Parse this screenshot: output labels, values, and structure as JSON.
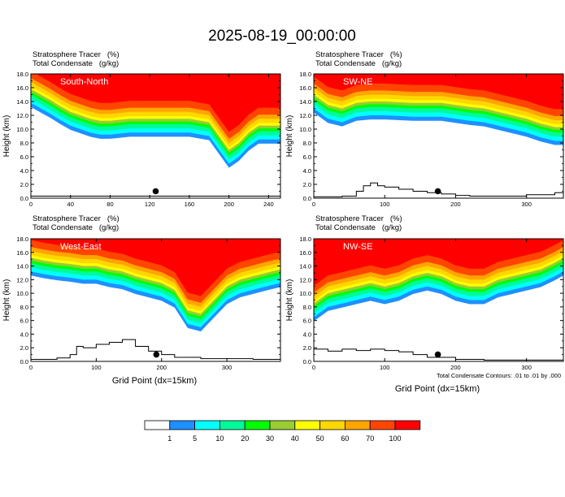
{
  "title": "2025-08-19_00:00:00",
  "xlabel": "Grid Point (dx=15km)",
  "ylabel": "Height (km)",
  "contour_note": "Total Condensate Contours: .01 to .01 by .000",
  "colorbar": {
    "levels": [
      "1",
      "5",
      "10",
      "20",
      "30",
      "40",
      "50",
      "60",
      "70",
      "100"
    ],
    "colors": [
      "#ffffff",
      "#1e90ff",
      "#00ffff",
      "#00fa9a",
      "#00ff00",
      "#9acd32",
      "#ffff00",
      "#ffd700",
      "#ffa500",
      "#ff4500",
      "#ff0000"
    ]
  },
  "chart_data": [
    {
      "type": "area",
      "panel_label": "South-North",
      "fields": [
        "Stratosphere Tracer   (%)",
        "Total Condensate   (g/kg)"
      ],
      "xlim": [
        0,
        252
      ],
      "xticks": [
        "0",
        "40",
        "80",
        "120",
        "160",
        "200",
        "240"
      ],
      "ylim": [
        0,
        18
      ],
      "yticks": [
        "0.0",
        "2.0",
        "4.0",
        "6.0",
        "8.0",
        "10.0",
        "12.0",
        "14.0",
        "16.0",
        "18.0"
      ],
      "tracer_base_height_km": {
        "x": [
          0,
          10,
          20,
          30,
          40,
          50,
          60,
          70,
          80,
          100,
          120,
          140,
          160,
          180,
          190,
          200,
          210,
          220,
          230,
          240,
          252
        ],
        "y": [
          15.8,
          15.0,
          14.2,
          13.3,
          12.5,
          12.0,
          11.5,
          11.2,
          11.2,
          11.5,
          11.5,
          11.5,
          11.5,
          11.0,
          9.0,
          7.0,
          8.0,
          9.5,
          10.5,
          10.5,
          10.5
        ]
      },
      "terrain_height_km": {
        "x": [
          0,
          40,
          80,
          120,
          160,
          200,
          252
        ],
        "y": [
          0.3,
          0.3,
          0.3,
          0.3,
          0.3,
          0.3,
          0.3
        ]
      },
      "marker": {
        "x": 126,
        "y": 1.0
      }
    },
    {
      "type": "area",
      "panel_label": "SW-NE",
      "fields": [
        "Stratosphere Tracer   (%)",
        "Total Condensate   (g/kg)"
      ],
      "xlim": [
        0,
        352
      ],
      "xticks": [
        "0",
        "100",
        "200",
        "300"
      ],
      "ylim": [
        0,
        18
      ],
      "yticks": [
        "0.0",
        "2.0",
        "4.0",
        "6.0",
        "8.0",
        "10.0",
        "12.0",
        "14.0",
        "16.0",
        "18.0"
      ],
      "tracer_base_height_km": {
        "x": [
          0,
          20,
          40,
          60,
          80,
          100,
          140,
          180,
          220,
          240,
          260,
          280,
          300,
          320,
          340,
          352
        ],
        "y": [
          15.0,
          13.5,
          13.0,
          13.8,
          14.0,
          14.0,
          13.8,
          13.8,
          13.2,
          13.0,
          12.5,
          12.0,
          11.5,
          10.8,
          10.3,
          10.3
        ]
      },
      "terrain_height_km": {
        "x": [
          0,
          40,
          60,
          70,
          80,
          90,
          100,
          120,
          140,
          160,
          180,
          200,
          220,
          260,
          300,
          340,
          352
        ],
        "y": [
          0.2,
          0.3,
          1.0,
          1.8,
          2.2,
          1.8,
          1.6,
          1.3,
          1.0,
          0.8,
          0.6,
          0.4,
          0.3,
          0.3,
          0.5,
          0.8,
          1.0
        ]
      },
      "marker": {
        "x": 175,
        "y": 1.0
      }
    },
    {
      "type": "area",
      "panel_label": "West-East",
      "fields": [
        "Stratosphere Tracer   (%)",
        "Total Condensate   (g/kg)"
      ],
      "xlim": [
        0,
        382
      ],
      "xticks": [
        "0",
        "100",
        "200",
        "300"
      ],
      "ylim": [
        0,
        18
      ],
      "yticks": [
        "0.0",
        "2.0",
        "4.0",
        "6.0",
        "8.0",
        "10.0",
        "12.0",
        "14.0",
        "16.0",
        "18.0"
      ],
      "tracer_base_height_km": {
        "x": [
          0,
          20,
          40,
          60,
          80,
          100,
          120,
          140,
          160,
          180,
          200,
          220,
          240,
          260,
          280,
          300,
          320,
          340,
          360,
          382
        ],
        "y": [
          15.2,
          14.8,
          14.5,
          14.3,
          14.0,
          14.0,
          13.5,
          13.2,
          12.5,
          12.0,
          11.5,
          10.5,
          7.5,
          7.0,
          9.0,
          11.0,
          12.0,
          12.5,
          13.0,
          13.5
        ]
      },
      "terrain_height_km": {
        "x": [
          0,
          40,
          60,
          70,
          80,
          100,
          120,
          140,
          160,
          180,
          200,
          220,
          260,
          300,
          340,
          382
        ],
        "y": [
          0.3,
          0.5,
          1.0,
          2.2,
          2.0,
          2.5,
          2.8,
          3.2,
          2.2,
          1.5,
          1.0,
          0.6,
          0.4,
          0.4,
          0.3,
          0.3
        ]
      },
      "marker": {
        "x": 192,
        "y": 1.0
      }
    },
    {
      "type": "area",
      "panel_label": "NW-SE",
      "fields": [
        "Stratosphere Tracer   (%)",
        "Total Condensate   (g/kg)"
      ],
      "xlim": [
        0,
        352
      ],
      "xticks": [
        "0",
        "100",
        "200",
        "300"
      ],
      "ylim": [
        0,
        18
      ],
      "yticks": [
        "0.0",
        "2.0",
        "4.0",
        "6.0",
        "8.0",
        "10.0",
        "12.0",
        "14.0",
        "16.0",
        "18.0"
      ],
      "tracer_base_height_km": {
        "x": [
          0,
          20,
          40,
          60,
          80,
          100,
          120,
          140,
          160,
          180,
          200,
          220,
          240,
          260,
          280,
          300,
          320,
          340,
          352
        ],
        "y": [
          8.5,
          10.0,
          10.5,
          11.0,
          11.5,
          11.0,
          11.5,
          12.5,
          13.0,
          12.5,
          11.5,
          11.0,
          11.0,
          12.0,
          12.5,
          13.0,
          13.5,
          14.5,
          15.2
        ]
      },
      "terrain_height_km": {
        "x": [
          0,
          20,
          40,
          60,
          80,
          100,
          120,
          140,
          160,
          200,
          240,
          280,
          320,
          352
        ],
        "y": [
          1.8,
          1.5,
          1.8,
          1.6,
          1.8,
          1.6,
          1.4,
          1.0,
          0.6,
          0.3,
          0.2,
          0.2,
          0.2,
          0.2
        ]
      },
      "marker": {
        "x": 175,
        "y": 1.0
      }
    }
  ]
}
